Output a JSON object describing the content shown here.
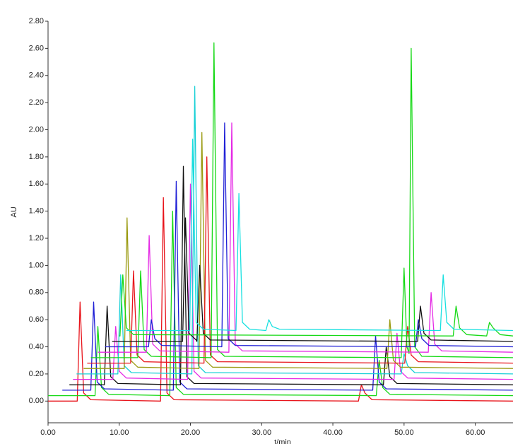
{
  "chart_data": {
    "type": "line",
    "xlabel": "t/min",
    "ylabel": "AU",
    "xlim": [
      0,
      65.3
    ],
    "ylim": [
      -0.16,
      2.8
    ],
    "xticks": [
      {
        "value": 0,
        "label": "0.00"
      },
      {
        "value": 10,
        "label": "10.00"
      },
      {
        "value": 20,
        "label": "20.00"
      },
      {
        "value": 30,
        "label": "30.00"
      },
      {
        "value": 40,
        "label": "40.00"
      },
      {
        "value": 50,
        "label": "50.00"
      },
      {
        "value": 60,
        "label": "60.00"
      }
    ],
    "yticks": [
      {
        "value": 0,
        "label": "0.00"
      },
      {
        "value": 0.2,
        "label": "0.20"
      },
      {
        "value": 0.4,
        "label": "0.40"
      },
      {
        "value": 0.6,
        "label": "0.60"
      },
      {
        "value": 0.8,
        "label": "0.80"
      },
      {
        "value": 1,
        "label": "1.00"
      },
      {
        "value": 1.2,
        "label": "1.20"
      },
      {
        "value": 1.4,
        "label": "1.40"
      },
      {
        "value": 1.6,
        "label": "1.60"
      },
      {
        "value": 1.8,
        "label": "1.80"
      },
      {
        "value": 2,
        "label": "2.00"
      },
      {
        "value": 2.2,
        "label": "2.20"
      },
      {
        "value": 2.4,
        "label": "2.40"
      },
      {
        "value": 2.6,
        "label": "2.60"
      },
      {
        "value": 2.8,
        "label": "2.80"
      }
    ],
    "series": [
      {
        "color": "#e8141b",
        "x": [
          0,
          4.1,
          4.5,
          5.0,
          6.0,
          15.8,
          16.2,
          16.7,
          17.7,
          43.6,
          44,
          44.5,
          45.5,
          65.3
        ],
        "values": [
          0,
          0,
          0.73,
          0.06,
          0.01,
          0,
          1.5,
          0.06,
          0.01,
          0,
          0.12,
          0.06,
          0.01,
          0
        ]
      },
      {
        "color": "#16d916",
        "x": [
          0,
          6.6,
          7.0,
          7.5,
          8.5,
          17.1,
          17.5,
          18.0,
          19.0,
          46.1,
          46.5,
          47.0,
          48.0,
          65.3
        ],
        "values": [
          0.04,
          0.04,
          0.55,
          0.1,
          0.05,
          0.04,
          1.4,
          0.1,
          0.05,
          0.04,
          0.3,
          0.1,
          0.05,
          0.04
        ]
      },
      {
        "color": "#1f1fd6",
        "x": [
          2,
          6.0,
          6.4,
          6.9,
          7.9,
          17.6,
          18.0,
          18.5,
          19.5,
          45.6,
          46,
          46.5,
          47.5,
          65.3
        ],
        "values": [
          0.08,
          0.08,
          0.73,
          0.14,
          0.09,
          0.08,
          1.62,
          0.14,
          0.09,
          0.08,
          0.48,
          0.14,
          0.09,
          0.08
        ]
      },
      {
        "color": "#111111",
        "x": [
          3,
          7.9,
          8.3,
          8.8,
          9.8,
          18.6,
          19.0,
          19.5,
          20.5,
          47.1,
          47.5,
          48.0,
          49.0,
          65.3
        ],
        "values": [
          0.12,
          0.12,
          0.7,
          0.18,
          0.13,
          0.12,
          1.73,
          0.18,
          0.13,
          0.12,
          0.4,
          0.18,
          0.13,
          0.12
        ]
      },
      {
        "color": "#e52ae5",
        "x": [
          3.5,
          9.1,
          9.5,
          10.0,
          11.0,
          19.6,
          20.0,
          20.5,
          21.5,
          48.6,
          49,
          49.5,
          50.5,
          65.3
        ],
        "values": [
          0.16,
          0.16,
          0.55,
          0.22,
          0.17,
          0.16,
          1.6,
          0.22,
          0.17,
          0.16,
          0.5,
          0.22,
          0.17,
          0.16
        ]
      },
      {
        "color": "#17d0d6",
        "x": [
          4,
          9.8,
          10.2,
          10.7,
          11.7,
          20.2,
          20.6,
          21.1,
          22.1,
          49.6,
          50,
          50.5,
          51.5,
          65.3
        ],
        "values": [
          0.2,
          0.2,
          0.93,
          0.26,
          0.21,
          0.2,
          2.32,
          0.26,
          0.21,
          0.2,
          0.35,
          0.26,
          0.21,
          0.2
        ]
      },
      {
        "color": "#9a9a10",
        "x": [
          5,
          10.7,
          11.1,
          11.6,
          12.6,
          21.2,
          21.6,
          22.1,
          23.1,
          47.6,
          48,
          48.5,
          49.5,
          65.3
        ],
        "values": [
          0.24,
          0.24,
          1.35,
          0.3,
          0.25,
          0.24,
          1.98,
          0.3,
          0.25,
          0.24,
          0.6,
          0.3,
          0.25,
          0.24
        ]
      },
      {
        "color": "#e8141b",
        "x": [
          5.5,
          11.6,
          12.0,
          12.5,
          13.5,
          21.9,
          22.3,
          22.8,
          23.8,
          50.1,
          50.5,
          51.0,
          52.0,
          65.3
        ],
        "values": [
          0.28,
          0.28,
          0.96,
          0.34,
          0.29,
          0.28,
          1.8,
          0.34,
          0.29,
          0.28,
          0.55,
          0.34,
          0.29,
          0.28
        ]
      },
      {
        "color": "#16d916",
        "x": [
          6,
          12.6,
          13.0,
          13.5,
          14.5,
          22.9,
          23.3,
          23.8,
          24.8,
          49.6,
          50,
          50.4,
          50.7,
          51,
          51.5,
          52.5,
          65.3
        ],
        "values": [
          0.32,
          0.32,
          0.96,
          0.38,
          0.33,
          0.32,
          2.64,
          0.38,
          0.33,
          0.32,
          0.98,
          0.4,
          0.35,
          2.6,
          0.4,
          0.33,
          0.32
        ]
      },
      {
        "color": "#e52ae5",
        "x": [
          7,
          13.8,
          14.2,
          14.7,
          15.7,
          25.4,
          25.8,
          26.3,
          27.3,
          53.4,
          53.8,
          54.3,
          55.3,
          65.3
        ],
        "values": [
          0.36,
          0.36,
          1.22,
          0.42,
          0.37,
          0.36,
          2.05,
          0.42,
          0.37,
          0.36,
          0.8,
          0.42,
          0.37,
          0.36
        ]
      },
      {
        "color": "#1f1fd6",
        "x": [
          8,
          14.1,
          14.5,
          15.0,
          16.0,
          24.4,
          24.8,
          25.3,
          26.3,
          51.6,
          52,
          52.5,
          53.5,
          65.3
        ],
        "values": [
          0.4,
          0.4,
          0.6,
          0.46,
          0.41,
          0.4,
          2.05,
          0.46,
          0.41,
          0.4,
          0.6,
          0.46,
          0.41,
          0.4
        ]
      },
      {
        "color": "#111111",
        "x": [
          9,
          18.9,
          19.3,
          19.8,
          20.8,
          20.9,
          21.3,
          21.8,
          22.8,
          51.9,
          52.3,
          52.8,
          53.8,
          65.3
        ],
        "values": [
          0.44,
          0.44,
          1.35,
          0.5,
          0.45,
          0.44,
          1.0,
          0.5,
          0.45,
          0.44,
          0.7,
          0.5,
          0.45,
          0.44
        ]
      },
      {
        "color": "#16d916",
        "x": [
          10,
          10.1,
          10.5,
          11.0,
          12.0,
          56.9,
          57.3,
          57.8,
          58.8,
          61.6,
          62,
          62.5,
          63.5,
          65.3
        ],
        "values": [
          0.48,
          0.48,
          0.93,
          0.54,
          0.49,
          0.48,
          0.7,
          0.54,
          0.49,
          0.48,
          0.58,
          0.54,
          0.49,
          0.48
        ]
      },
      {
        "color": "#17e0e0",
        "x": [
          11,
          19.9,
          20.3,
          20.8,
          21.8,
          26.4,
          26.8,
          27.3,
          28.3,
          30.6,
          31,
          31.5,
          32.5,
          55.1,
          55.5,
          56.0,
          57.0,
          65.3
        ],
        "values": [
          0.52,
          0.52,
          1.93,
          0.58,
          0.53,
          0.52,
          1.53,
          0.58,
          0.53,
          0.52,
          0.6,
          0.55,
          0.53,
          0.52,
          0.93,
          0.58,
          0.53,
          0.52
        ]
      }
    ]
  }
}
